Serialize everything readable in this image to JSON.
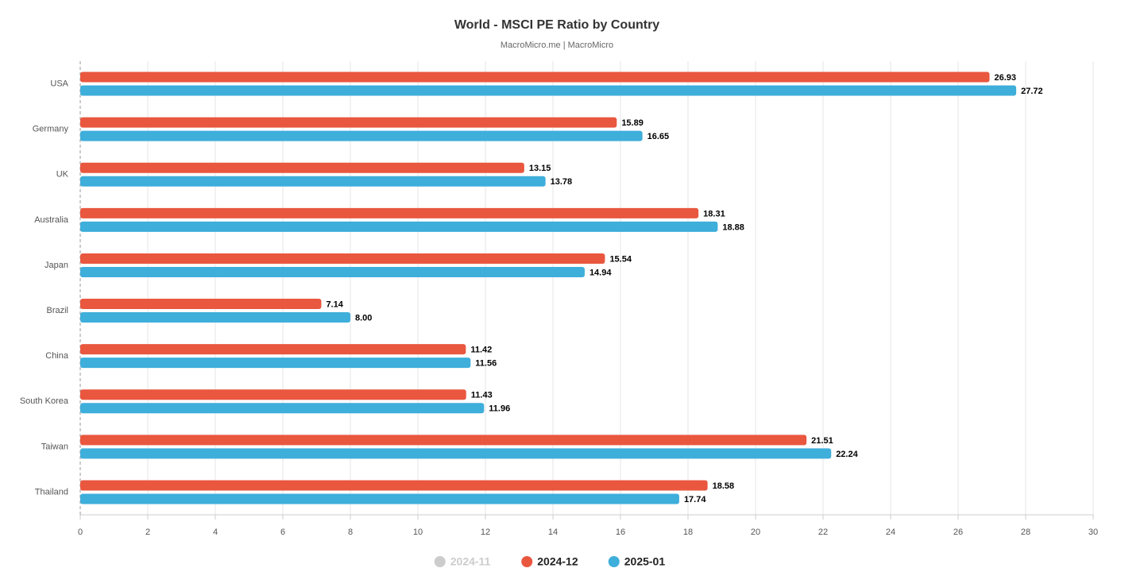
{
  "chart_data": {
    "type": "hbar",
    "title": "World - MSCI PE Ratio by Country",
    "subtitle": "MacroMicro.me | MacroMicro",
    "categories": [
      "USA",
      "Germany",
      "UK",
      "Australia",
      "Japan",
      "Brazil",
      "China",
      "South Korea",
      "Taiwan",
      "Thailand"
    ],
    "series": [
      {
        "name": "2024-11",
        "color": "#cccccc",
        "visible": false,
        "values": [
          null,
          null,
          null,
          null,
          null,
          null,
          null,
          null,
          null,
          null
        ]
      },
      {
        "name": "2024-12",
        "color": "#e9573f",
        "visible": true,
        "values": [
          26.93,
          15.89,
          13.15,
          18.31,
          15.54,
          7.14,
          11.42,
          11.43,
          21.51,
          18.58
        ],
        "value_labels": [
          "26.93",
          "15.89",
          "13.15",
          "18.31",
          "15.54",
          "7.14",
          "11.42",
          "11.43",
          "21.51",
          "18.58"
        ]
      },
      {
        "name": "2025-01",
        "color": "#3eaedb",
        "visible": true,
        "values": [
          27.72,
          16.65,
          13.78,
          18.88,
          14.94,
          8,
          11.56,
          11.96,
          22.24,
          17.74
        ],
        "value_labels": [
          "27.72",
          "16.65",
          "13.78",
          "18.88",
          "14.94",
          "8.00",
          "11.56",
          "11.96",
          "22.24",
          "17.74"
        ]
      }
    ],
    "xlim": [
      0,
      30
    ],
    "xticks": [
      0,
      2,
      4,
      6,
      8,
      10,
      12,
      14,
      16,
      18,
      20,
      22,
      24,
      26,
      28,
      30
    ],
    "grid": true,
    "legend": "bottom"
  }
}
